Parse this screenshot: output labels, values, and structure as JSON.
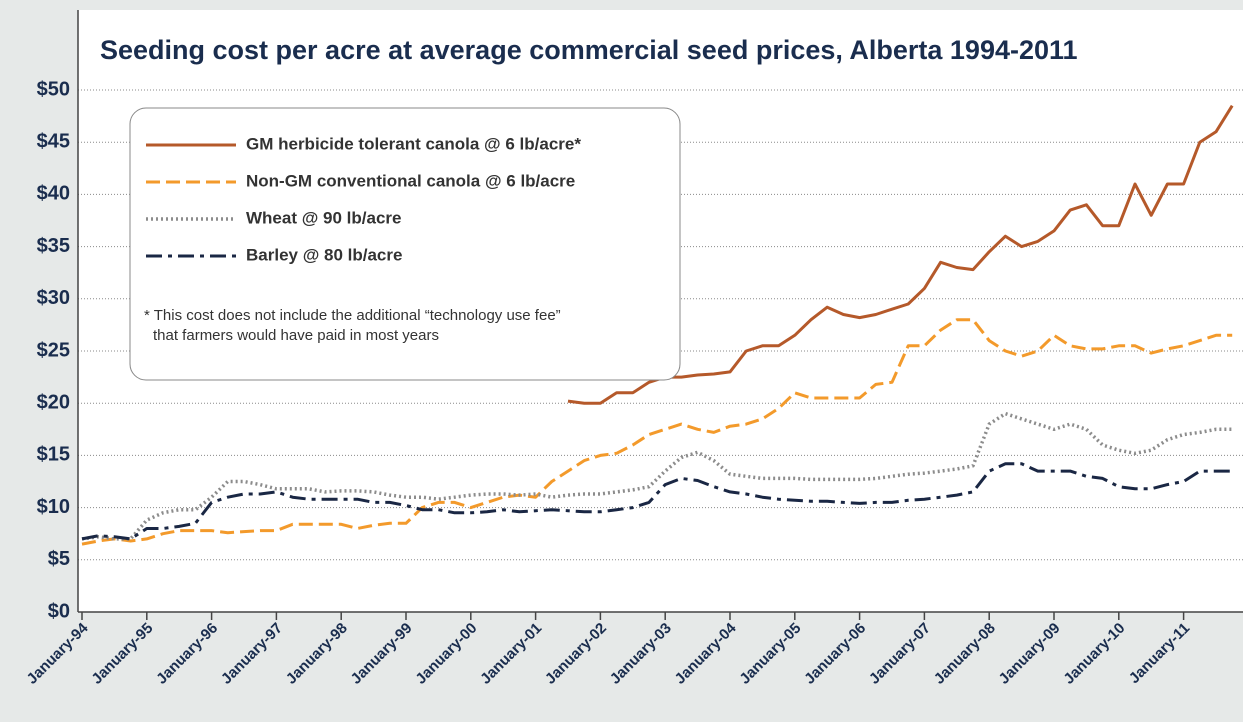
{
  "chart_data": {
    "type": "line",
    "title": "Seeding cost per acre at average commercial seed prices, Alberta 1994-2011",
    "annotations": [
      "* This cost does not include the additional “technology use fee”",
      "that farmers would have paid in most years"
    ],
    "categories": [
      "January-94",
      null,
      null,
      null,
      "January-95",
      null,
      null,
      null,
      "January-96",
      null,
      null,
      null,
      "January-97",
      null,
      null,
      null,
      "January-98",
      null,
      null,
      null,
      "January-99",
      null,
      null,
      null,
      "January-00",
      null,
      null,
      null,
      "January-01",
      null,
      null,
      null,
      "January-02",
      null,
      null,
      null,
      "January-03",
      null,
      null,
      null,
      "January-04",
      null,
      null,
      null,
      "January-05",
      null,
      null,
      null,
      "January-06",
      null,
      null,
      null,
      "January-07",
      null,
      null,
      null,
      "January-08",
      null,
      null,
      null,
      "January-09",
      null,
      null,
      null,
      "January-10",
      null,
      null,
      null,
      "January-11",
      null,
      null,
      null
    ],
    "ylim": [
      0,
      50
    ],
    "yticks": [
      {
        "value": 0,
        "label": "$0"
      },
      {
        "value": 5,
        "label": "$5"
      },
      {
        "value": 10,
        "label": "$10"
      },
      {
        "value": 15,
        "label": "$15"
      },
      {
        "value": 20,
        "label": "$20"
      },
      {
        "value": 25,
        "label": "$25"
      },
      {
        "value": 30,
        "label": "$30"
      },
      {
        "value": 35,
        "label": "$35"
      },
      {
        "value": 40,
        "label": "$40"
      },
      {
        "value": 45,
        "label": "$45"
      },
      {
        "value": 50,
        "label": "$50"
      }
    ],
    "grid": true,
    "legend": "upper left",
    "series": [
      {
        "name": "GM herbicide tolerant canola @ 6 lb/acre*",
        "color": "#b5592a",
        "dash": "solid",
        "values": [
          null,
          null,
          null,
          null,
          null,
          null,
          null,
          null,
          null,
          null,
          null,
          null,
          null,
          null,
          null,
          null,
          null,
          null,
          null,
          null,
          null,
          null,
          null,
          null,
          null,
          null,
          null,
          null,
          null,
          null,
          20.2,
          20.0,
          20.0,
          21.0,
          21.0,
          22.0,
          22.5,
          22.5,
          22.7,
          22.8,
          23.0,
          25.0,
          25.5,
          25.5,
          26.5,
          28.0,
          29.2,
          28.5,
          28.2,
          28.5,
          29.0,
          29.5,
          31.0,
          33.5,
          33.0,
          32.8,
          34.5,
          36.0,
          35.0,
          35.5,
          36.5,
          38.5,
          39.0,
          37.0,
          37.0,
          41.0,
          38.0,
          41.0,
          41.0,
          45.0,
          46.0,
          48.5
        ]
      },
      {
        "name": "Non-GM conventional canola @ 6 lb/acre",
        "color": "#f39a2b",
        "dash": "dashed",
        "values": [
          6.5,
          6.8,
          7.0,
          6.8,
          7.0,
          7.5,
          7.8,
          7.8,
          7.8,
          7.6,
          7.7,
          7.8,
          7.8,
          8.4,
          8.4,
          8.4,
          8.4,
          8.0,
          8.3,
          8.5,
          8.5,
          10.0,
          10.5,
          10.5,
          10.0,
          10.5,
          11.0,
          11.2,
          11.0,
          12.5,
          13.5,
          14.5,
          15.0,
          15.2,
          16.0,
          17.0,
          17.5,
          18.0,
          17.5,
          17.2,
          17.8,
          18.0,
          18.5,
          19.5,
          21.0,
          20.5,
          20.5,
          20.5,
          20.5,
          21.8,
          22.0,
          25.5,
          25.5,
          27.0,
          28.0,
          28.0,
          26.0,
          25.0,
          24.5,
          25.0,
          26.5,
          25.5,
          25.2,
          25.2,
          25.5,
          25.5,
          24.8,
          25.2,
          25.5,
          26.0,
          26.5,
          26.5
        ]
      },
      {
        "name": "Wheat @ 90 lb/acre",
        "color": "#8c8c8c",
        "dash": "dotted",
        "values": [
          7.0,
          7.2,
          7.0,
          7.0,
          8.8,
          9.5,
          9.8,
          9.8,
          11.0,
          12.5,
          12.5,
          12.2,
          11.8,
          11.8,
          11.8,
          11.5,
          11.6,
          11.6,
          11.5,
          11.2,
          11.0,
          11.0,
          10.8,
          11.0,
          11.2,
          11.3,
          11.3,
          11.2,
          11.3,
          11.0,
          11.2,
          11.3,
          11.3,
          11.5,
          11.7,
          12.0,
          13.5,
          14.8,
          15.3,
          14.5,
          13.2,
          13.0,
          12.8,
          12.8,
          12.8,
          12.7,
          12.7,
          12.7,
          12.7,
          12.8,
          13.0,
          13.2,
          13.3,
          13.5,
          13.7,
          14.0,
          18.0,
          19.0,
          18.5,
          18.0,
          17.5,
          18.0,
          17.5,
          16.0,
          15.5,
          15.2,
          15.5,
          16.5,
          17.0,
          17.2,
          17.5,
          17.5
        ]
      },
      {
        "name": "Barley @ 80 lb/acre",
        "color": "#1a2744",
        "dash": "dashdot",
        "values": [
          7.0,
          7.3,
          7.2,
          7.0,
          8.0,
          8.0,
          8.2,
          8.5,
          10.5,
          11.0,
          11.3,
          11.3,
          11.5,
          11.0,
          10.8,
          10.8,
          10.8,
          10.8,
          10.5,
          10.5,
          10.2,
          9.8,
          9.8,
          9.5,
          9.5,
          9.6,
          9.8,
          9.6,
          9.7,
          9.8,
          9.7,
          9.6,
          9.6,
          9.8,
          10.0,
          10.5,
          12.2,
          12.8,
          12.6,
          12.0,
          11.5,
          11.3,
          11.0,
          10.8,
          10.7,
          10.6,
          10.6,
          10.5,
          10.4,
          10.5,
          10.5,
          10.7,
          10.8,
          11.0,
          11.2,
          11.5,
          13.5,
          14.2,
          14.2,
          13.5,
          13.5,
          13.5,
          13.0,
          12.8,
          12.0,
          11.8,
          11.8,
          12.2,
          12.5,
          13.5,
          13.5,
          13.5
        ]
      }
    ]
  }
}
